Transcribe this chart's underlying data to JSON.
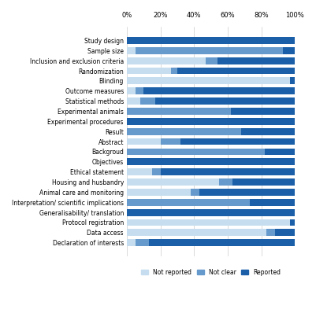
{
  "categories": [
    "Study design",
    "Sample size",
    "Inclusion and exclusion criteria",
    "Randomization",
    "Blinding",
    "Outcome measures",
    "Statistical methods",
    "Experimental animals",
    "Experimental procedures",
    "Result",
    "Abstract",
    "Backgroud",
    "Objectives",
    "Ethical statement",
    "Housing and husbandry",
    "Animal care and monitoring",
    "Interpretation/ scientific implications",
    "Generalisability/ translation",
    "Protocol registration",
    "Data access",
    "Declaration of interests"
  ],
  "not_reported": [
    0,
    5,
    47,
    26,
    97,
    5,
    8,
    0,
    0,
    0,
    20,
    0,
    0,
    15,
    55,
    38,
    0,
    0,
    97,
    83,
    5
  ],
  "not_clear": [
    0,
    88,
    7,
    4,
    0,
    5,
    9,
    62,
    0,
    68,
    12,
    82,
    0,
    5,
    8,
    5,
    73,
    0,
    0,
    5,
    8
  ],
  "reported": [
    100,
    7,
    46,
    70,
    3,
    90,
    83,
    38,
    100,
    32,
    68,
    18,
    100,
    80,
    37,
    57,
    27,
    100,
    3,
    12,
    87
  ],
  "colors": {
    "not_reported": "#c5ddef",
    "not_clear": "#6699cc",
    "reported": "#1a5fa8"
  },
  "legend_labels": [
    "Not reported",
    "Not clear",
    "Reported"
  ],
  "xlim": [
    0,
    100
  ],
  "xtick_labels": [
    "0%",
    "20%",
    "40%",
    "60%",
    "80%",
    "100%"
  ],
  "xtick_values": [
    0,
    20,
    40,
    60,
    80,
    100
  ]
}
